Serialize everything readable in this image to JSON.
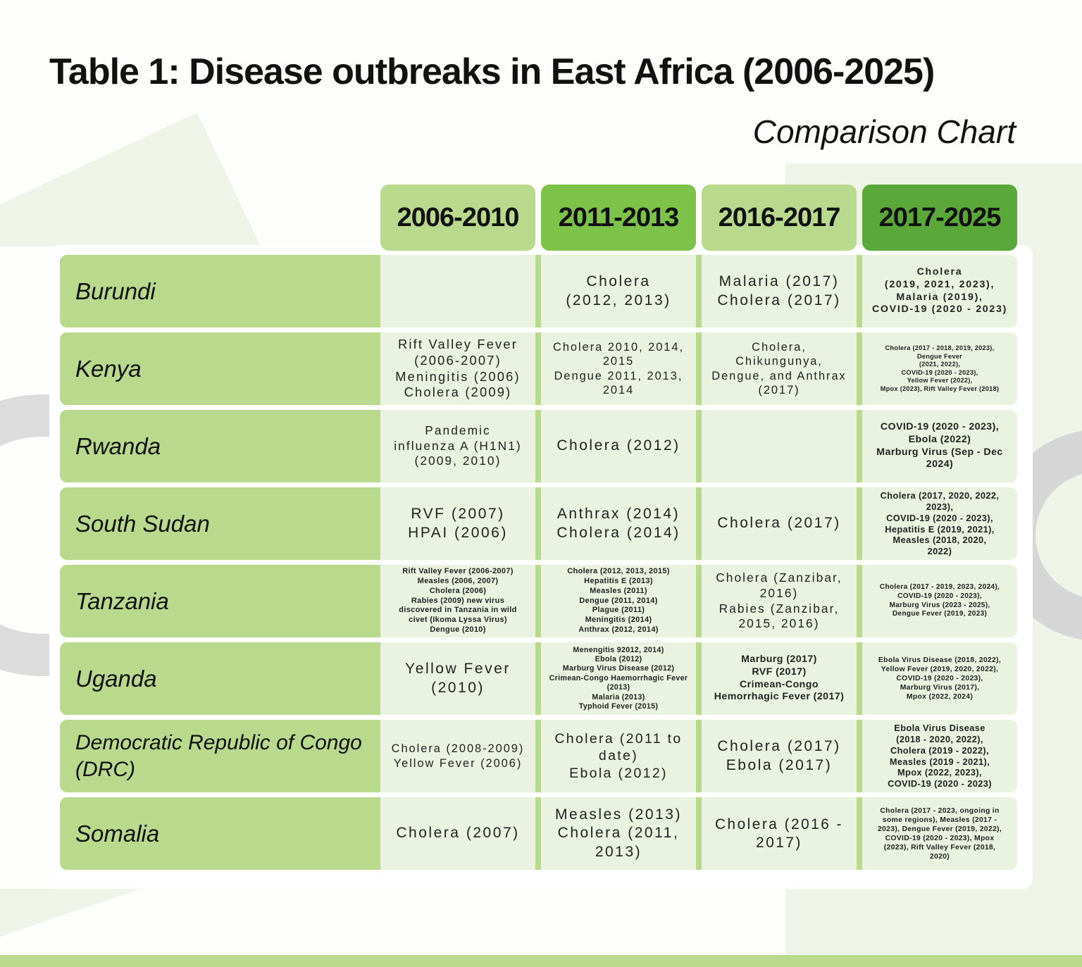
{
  "title": "Table 1: Disease outbreaks in East Africa (2006-2025)",
  "subtitle": "Comparison Chart",
  "table": {
    "columns": [
      "2006-2010",
      "2011-2013",
      "2016-2017",
      "2017-2025"
    ],
    "rows": [
      {
        "country": [
          "Burundi"
        ],
        "cells": [
          [],
          [
            "Cholera",
            "(2012, 2013)"
          ],
          [
            "Malaria (2017)",
            "Cholera (2017)"
          ],
          [
            "Cholera",
            "(2019, 2021, 2023),",
            "Malaria (2019),",
            "COVID-19 (2020 - 2023)"
          ]
        ]
      },
      {
        "country": [
          "Kenya"
        ],
        "cells": [
          [
            "Rift Valley Fever",
            "(2006-2007)",
            "Meningitis (2006)",
            "Cholera (2009)"
          ],
          [
            "Cholera 2010, 2014,",
            "2015",
            "Dengue 2011, 2013,",
            "2014"
          ],
          [
            "Cholera,",
            "Chikungunya,",
            "Dengue, and Anthrax",
            "(2017)"
          ],
          [
            "Cholera (2017 - 2018, 2019, 2023),",
            "Dengue Fever",
            "(2021, 2022),",
            "COVID-19 (2020 - 2023),",
            "Yellow Fever (2022),",
            "Mpox (2023), Rift Valley Fever (2018)"
          ]
        ]
      },
      {
        "country": [
          "Rwanda"
        ],
        "cells": [
          [
            "Pandemic",
            "influenza A (H1N1)",
            "(2009, 2010)"
          ],
          [
            "Cholera (2012)"
          ],
          [],
          [
            "COVID-19 (2020 - 2023),",
            "Ebola (2022)",
            "Marburg Virus (Sep - Dec",
            "2024)"
          ]
        ]
      },
      {
        "country": [
          "South Sudan"
        ],
        "cells": [
          [
            "RVF (2007)",
            "HPAI (2006)"
          ],
          [
            "Anthrax (2014)",
            "Cholera (2014)"
          ],
          [
            "Cholera (2017)"
          ],
          [
            "Cholera (2017, 2020, 2022,",
            "2023),",
            "COVID-19 (2020 - 2023),",
            "Hepatitis E (2019, 2021),",
            "Measles (2018, 2020,",
            "2022)"
          ]
        ]
      },
      {
        "country": [
          "Tanzania"
        ],
        "cells": [
          [
            "Rift Valley Fever (2006-2007)",
            "Measles (2006, 2007)",
            "Cholera (2006)",
            "Rabies (2009) new virus",
            "discovered in Tanzania in wild",
            "civet (Ikoma Lyssa Virus)",
            "Dengue (2010)"
          ],
          [
            "Cholera (2012, 2013, 2015)",
            "Hepatitis E (2013)",
            "Measles (2011)",
            "Dengue (2011, 2014)",
            "Plague (2011)",
            "Meningitis (2014)",
            "Anthrax (2012, 2014)"
          ],
          [
            "Cholera (Zanzibar,",
            "2016)",
            "Rabies (Zanzibar,",
            "2015, 2016)"
          ],
          [
            "Cholera (2017 - 2019, 2023, 2024),",
            "COVID-19 (2020 - 2023),",
            "Marburg Virus (2023 - 2025),",
            "Dengue Fever (2019, 2023)"
          ]
        ]
      },
      {
        "country": [
          "Uganda"
        ],
        "cells": [
          [
            "Yellow Fever",
            "(2010)"
          ],
          [
            "Menengitis 92012, 2014)",
            "Ebola (2012)",
            "Marburg Virus Disease (2012)",
            "Crimean-Congo Haemorrhagic Fever",
            "(2013)",
            "Malaria (2013)",
            "Typhoid Fever (2015)"
          ],
          [
            "Marburg (2017)",
            "RVF (2017)",
            "Crimean-Congo",
            "Hemorrhagic Fever (2017)"
          ],
          [
            "Ebola Virus Disease (2018, 2022),",
            "Yellow Fever (2019, 2020, 2022),",
            "COVID-19 (2020 - 2023),",
            "Marburg Virus (2017),",
            "Mpox (2022, 2024)"
          ]
        ]
      },
      {
        "country": [
          "Democratic Republic of Congo",
          "(DRC)"
        ],
        "cells": [
          [
            "Cholera (2008-2009)",
            "Yellow Fever (2006)"
          ],
          [
            "Cholera (2011 to",
            "date)",
            "Ebola (2012)"
          ],
          [
            "Cholera (2017)",
            "Ebola (2017)"
          ],
          [
            "Ebola Virus Disease",
            "(2018 - 2020, 2022),",
            "Cholera (2019 - 2022),",
            "Measles (2019 - 2021),",
            "Mpox (2022, 2023),",
            "COVID-19 (2020 - 2023)"
          ]
        ]
      },
      {
        "country": [
          "Somalia"
        ],
        "cells": [
          [
            "Cholera (2007)"
          ],
          [
            "Measles (2013)",
            "Cholera (2011,",
            "2013)"
          ],
          [
            "Cholera (2016 -",
            "2017)"
          ],
          [
            "Cholera (2017 - 2023, ongoing in",
            "some regions), Measles (2017 -",
            "2023), Dengue Fever (2019, 2022),",
            "COVID-19 (2020 - 2023), Mpox",
            "(2023), Rift Valley Fever (2018,",
            "2020)"
          ]
        ]
      }
    ]
  }
}
